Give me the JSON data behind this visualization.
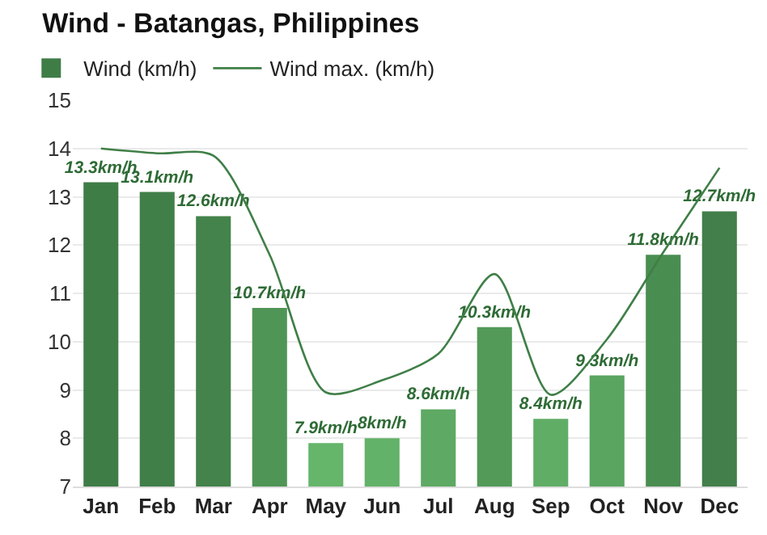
{
  "chart_data": {
    "type": "bar",
    "title": "Wind - Batangas, Philippines",
    "categories": [
      "Jan",
      "Feb",
      "Mar",
      "Apr",
      "May",
      "Jun",
      "Jul",
      "Aug",
      "Sep",
      "Oct",
      "Nov",
      "Dec"
    ],
    "series": [
      {
        "name": "Wind (km/h)",
        "color": "#2e6b35",
        "colors": [
          "#3f7d47",
          "#417f49",
          "#44834b",
          "#4f9556",
          "#65b56b",
          "#63b269",
          "#5ea963",
          "#539a59",
          "#60ad66",
          "#5aa560",
          "#4a8d51",
          "#437f4a"
        ],
        "values": [
          13.3,
          13.1,
          12.6,
          10.7,
          7.9,
          8,
          8.6,
          10.3,
          8.4,
          9.3,
          11.8,
          12.7
        ],
        "value_labels": [
          "13.3km/h",
          "13.1km/h",
          "12.6km/h",
          "10.7km/h",
          "7.9km/h",
          "8km/h",
          "8.6km/h",
          "10.3km/h",
          "8.4km/h",
          "9.3km/h",
          "11.8km/h",
          "12.7km/h"
        ]
      },
      {
        "name": "Wind max. (km/h)",
        "type": "line",
        "color": "#3f7f47",
        "values": [
          14.0,
          13.9,
          13.85,
          11.8,
          8.95,
          9.2,
          9.75,
          11.4,
          8.9,
          10.05,
          11.85,
          13.6
        ]
      }
    ],
    "ylim": [
      7,
      15
    ],
    "yticks": [
      7,
      8,
      9,
      10,
      11,
      12,
      13,
      14,
      15
    ],
    "grid": "y",
    "legend": "top left",
    "marker": "none",
    "line_style": "solid"
  }
}
